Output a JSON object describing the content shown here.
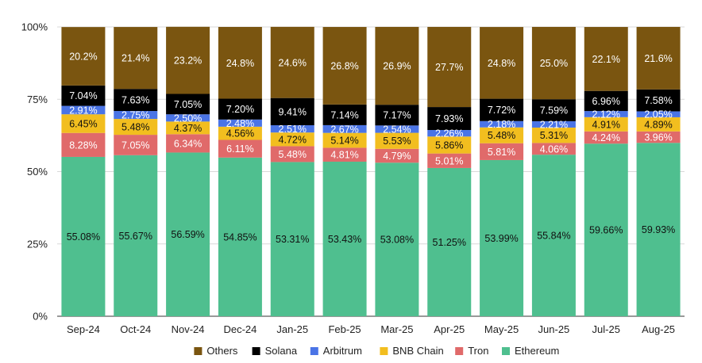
{
  "chart_data": {
    "type": "bar",
    "stacked": true,
    "percent": true,
    "title": "",
    "xlabel": "",
    "ylabel": "",
    "ylim": [
      0,
      100
    ],
    "yticks": [
      "0%",
      "25%",
      "50%",
      "75%",
      "100%"
    ],
    "grid": true,
    "legend_position": "bottom",
    "categories": [
      "Sep-24",
      "Oct-24",
      "Nov-24",
      "Dec-24",
      "Jan-25",
      "Feb-25",
      "Mar-25",
      "Apr-25",
      "May-25",
      "Jun-25",
      "Jul-25",
      "Aug-25"
    ],
    "series": [
      {
        "name": "Ethereum",
        "color": "#4fbf8f",
        "label_color": "#111111",
        "values": [
          55.08,
          55.67,
          56.59,
          54.85,
          53.31,
          53.43,
          53.08,
          51.25,
          53.99,
          55.84,
          59.66,
          59.93
        ],
        "labels": [
          "55.08%",
          "55.67%",
          "56.59%",
          "54.85%",
          "53.31%",
          "53.43%",
          "53.08%",
          "51.25%",
          "53.99%",
          "55.84%",
          "59.66%",
          "59.93%"
        ]
      },
      {
        "name": "Tron",
        "color": "#e06a6a",
        "label_color": "#ffffff",
        "values": [
          8.28,
          7.05,
          6.34,
          6.11,
          5.48,
          4.81,
          4.79,
          5.01,
          5.81,
          4.06,
          4.24,
          3.96
        ],
        "labels": [
          "8.28%",
          "7.05%",
          "6.34%",
          "6.11%",
          "5.48%",
          "4.81%",
          "4.79%",
          "5.01%",
          "5.81%",
          "4.06%",
          "4.24%",
          "3.96%"
        ]
      },
      {
        "name": "BNB Chain",
        "color": "#f2be1f",
        "label_color": "#111111",
        "values": [
          6.45,
          5.48,
          4.37,
          4.56,
          4.72,
          5.14,
          5.53,
          5.86,
          5.48,
          5.31,
          4.91,
          4.89
        ],
        "labels": [
          "6.45%",
          "5.48%",
          "4.37%",
          "4.56%",
          "4.72%",
          "5.14%",
          "5.53%",
          "5.86%",
          "5.48%",
          "5.31%",
          "4.91%",
          "4.89%"
        ]
      },
      {
        "name": "Arbitrum",
        "color": "#4a74e6",
        "label_color": "#ffffff",
        "values": [
          2.91,
          2.75,
          2.5,
          2.48,
          2.51,
          2.67,
          2.54,
          2.26,
          2.18,
          2.21,
          2.12,
          2.05
        ],
        "labels": [
          "2.91%",
          "2.75%",
          "2.50%",
          "2.48%",
          "2.51%",
          "2.67%",
          "2.54%",
          "2.26%",
          "2.18%",
          "2.21%",
          "2.12%",
          "2.05%"
        ]
      },
      {
        "name": "Solana",
        "color": "#000000",
        "label_color": "#ffffff",
        "values": [
          7.04,
          7.63,
          7.05,
          7.2,
          9.41,
          7.14,
          7.17,
          7.93,
          7.72,
          7.59,
          6.96,
          7.58
        ],
        "labels": [
          "7.04%",
          "7.63%",
          "7.05%",
          "7.20%",
          "9.41%",
          "7.14%",
          "7.17%",
          "7.93%",
          "7.72%",
          "7.59%",
          "6.96%",
          "7.58%"
        ]
      },
      {
        "name": "Others",
        "color": "#7a5510",
        "label_color": "#ffffff",
        "values": [
          20.2,
          21.4,
          23.2,
          24.8,
          24.6,
          26.8,
          26.9,
          27.7,
          24.8,
          25.0,
          22.1,
          21.6
        ],
        "labels": [
          "20.2%",
          "21.4%",
          "23.2%",
          "24.8%",
          "24.6%",
          "26.8%",
          "26.9%",
          "27.7%",
          "24.8%",
          "25.0%",
          "22.1%",
          "21.6%"
        ]
      }
    ],
    "legend_order": [
      "Others",
      "Solana",
      "Arbitrum",
      "BNB Chain",
      "Tron",
      "Ethereum"
    ]
  }
}
